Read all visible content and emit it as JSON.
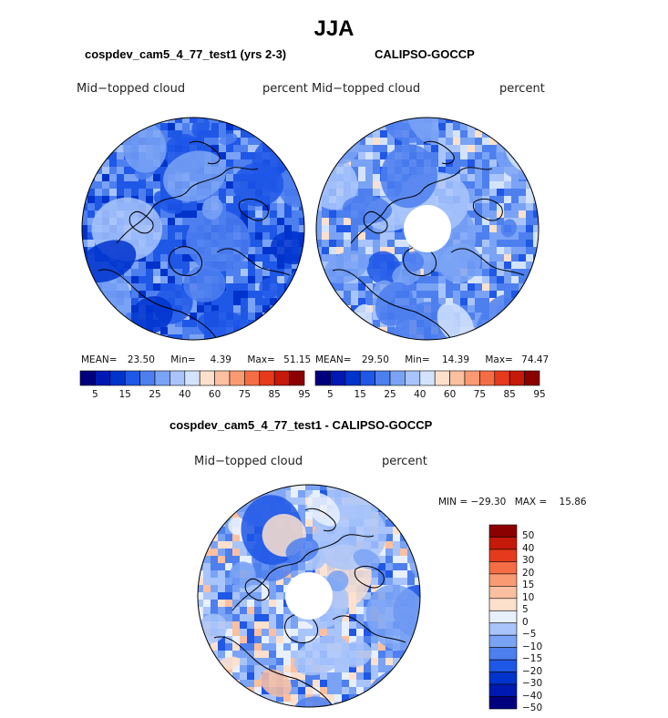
{
  "main_title": "JJA",
  "colors": {
    "abs_scale": [
      "#00007f",
      "#0019b3",
      "#0033cc",
      "#1f57e6",
      "#4d7fee",
      "#7aa3f5",
      "#a8c4fa",
      "#d4e3fc",
      "#fde0cc",
      "#fcbfa0",
      "#fa9a73",
      "#f56d45",
      "#e63a1c",
      "#c51a0a",
      "#8b0000"
    ],
    "diff_scale": [
      "#00007f",
      "#0019b3",
      "#0033cc",
      "#1f57e6",
      "#4d7fee",
      "#7aa3f5",
      "#a8c4fa",
      "#e8f0fd",
      "#fde0cc",
      "#fcbfa0",
      "#fa9a73",
      "#f56d45",
      "#e63a1c",
      "#c51a0a",
      "#8b0000"
    ],
    "land_outline": "#000000"
  },
  "chart_data": [
    {
      "type": "heatmap",
      "projection": "north-polar-stereographic",
      "title": "cospdev_cam5_4_77_test1 (yrs 2-3)",
      "left_label": "Mid−topped cloud",
      "right_label": "percent",
      "stats": {
        "mean_label": "MEAN=",
        "mean": "23.50",
        "min_label": "Min=",
        "min": "4.39",
        "max_label": "Max=",
        "max": "51.15"
      },
      "colorbar_levels": [
        "5",
        "15",
        "25",
        "40",
        "60",
        "75",
        "85",
        "95"
      ],
      "dominant_bins": [
        2,
        3,
        4,
        5,
        6
      ],
      "weights": [
        0.15,
        0.35,
        0.3,
        0.14,
        0.06
      ],
      "has_pole_gap": false
    },
    {
      "type": "heatmap",
      "projection": "north-polar-stereographic",
      "title": "CALIPSO-GOCCP",
      "left_label": "Mid−topped cloud",
      "right_label": "percent",
      "stats": {
        "mean_label": "MEAN=",
        "mean": "29.50",
        "min_label": "Min=",
        "min": "14.39",
        "max_label": "Max=",
        "max": "74.47"
      },
      "colorbar_levels": [
        "5",
        "15",
        "25",
        "40",
        "60",
        "75",
        "85",
        "95"
      ],
      "dominant_bins": [
        3,
        4,
        5,
        6,
        7,
        8
      ],
      "weights": [
        0.1,
        0.3,
        0.3,
        0.18,
        0.08,
        0.04
      ],
      "has_pole_gap": true
    },
    {
      "type": "heatmap",
      "projection": "north-polar-stereographic",
      "title": "cospdev_cam5_4_77_test1 - CALIPSO-GOCCP",
      "left_label": "Mid−topped cloud",
      "right_label": "percent",
      "stats": {
        "min_label": "MIN = ",
        "min": "−29.30",
        "max_label": "MAX = ",
        "max": "15.86"
      },
      "colorbar_levels": [
        "50",
        "40",
        "30",
        "20",
        "15",
        "10",
        "5",
        "0",
        "−5",
        "−10",
        "−15",
        "−20",
        "−30",
        "−40",
        "−50"
      ],
      "dominant_bins": [
        3,
        4,
        5,
        6,
        7,
        8,
        9
      ],
      "weights": [
        0.06,
        0.14,
        0.22,
        0.25,
        0.16,
        0.11,
        0.06
      ],
      "has_pole_gap": true
    }
  ]
}
